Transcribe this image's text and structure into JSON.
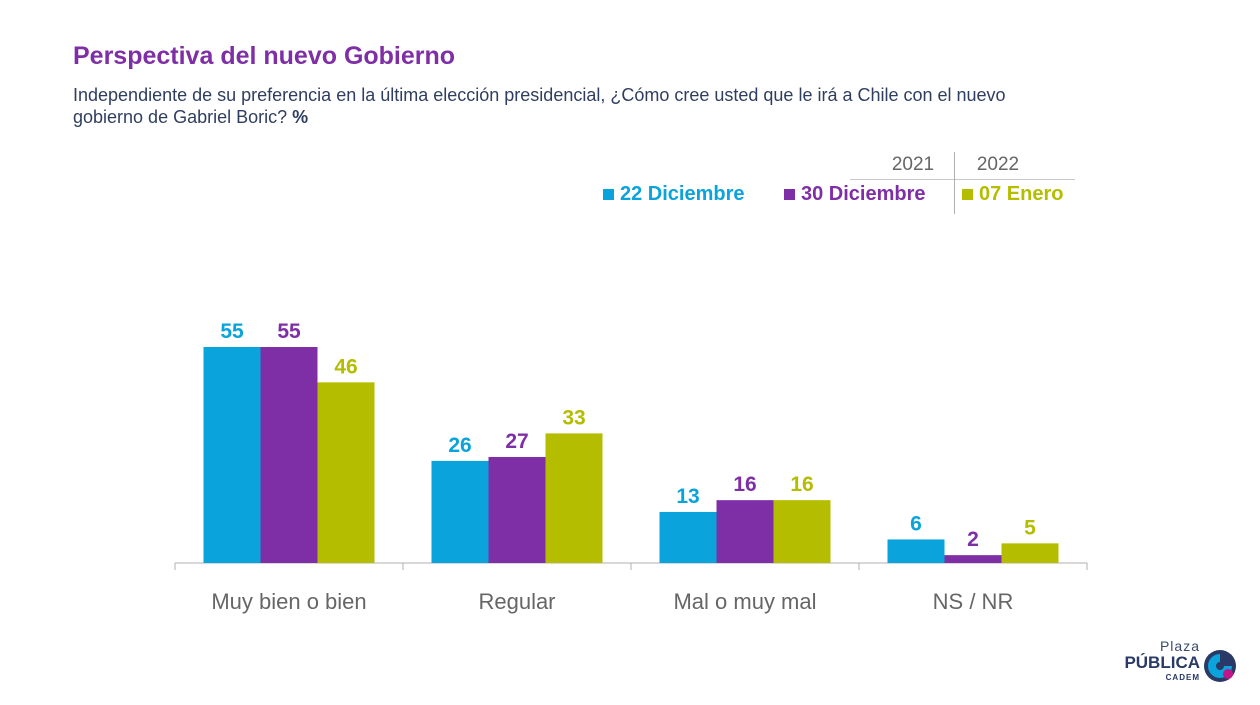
{
  "header": {
    "title": "Perspectiva del nuevo Gobierno",
    "subtitle": "Independiente de su preferencia en la última elección presidencial, ¿Cómo cree usted que le irá a Chile con el nuevo gobierno de Gabriel Boric?",
    "unit": "%"
  },
  "years": {
    "y2021": "2021",
    "y2022": "2022"
  },
  "logo": {
    "line1": "Plaza",
    "line2": "PÚBLICA",
    "line3": "CADEM"
  },
  "colors": {
    "c0": "#0aa3dc",
    "c1": "#7f2fa6",
    "c2": "#b4bd00"
  },
  "chart_data": {
    "type": "bar",
    "title": "Perspectiva del nuevo Gobierno",
    "categories": [
      "Muy bien o bien",
      "Regular",
      "Mal o muy mal",
      "NS / NR"
    ],
    "series": [
      {
        "name": "22 Diciembre",
        "color": "#0aa3dc",
        "values": [
          55,
          26,
          13,
          6
        ]
      },
      {
        "name": "30 Diciembre",
        "color": "#7f2fa6",
        "values": [
          55,
          27,
          16,
          2
        ]
      },
      {
        "name": "07 Enero",
        "color": "#b4bd00",
        "values": [
          46,
          33,
          16,
          5
        ]
      }
    ],
    "ylim": [
      0,
      55
    ],
    "grid": false,
    "legend": "top-right",
    "data_labels": true
  }
}
